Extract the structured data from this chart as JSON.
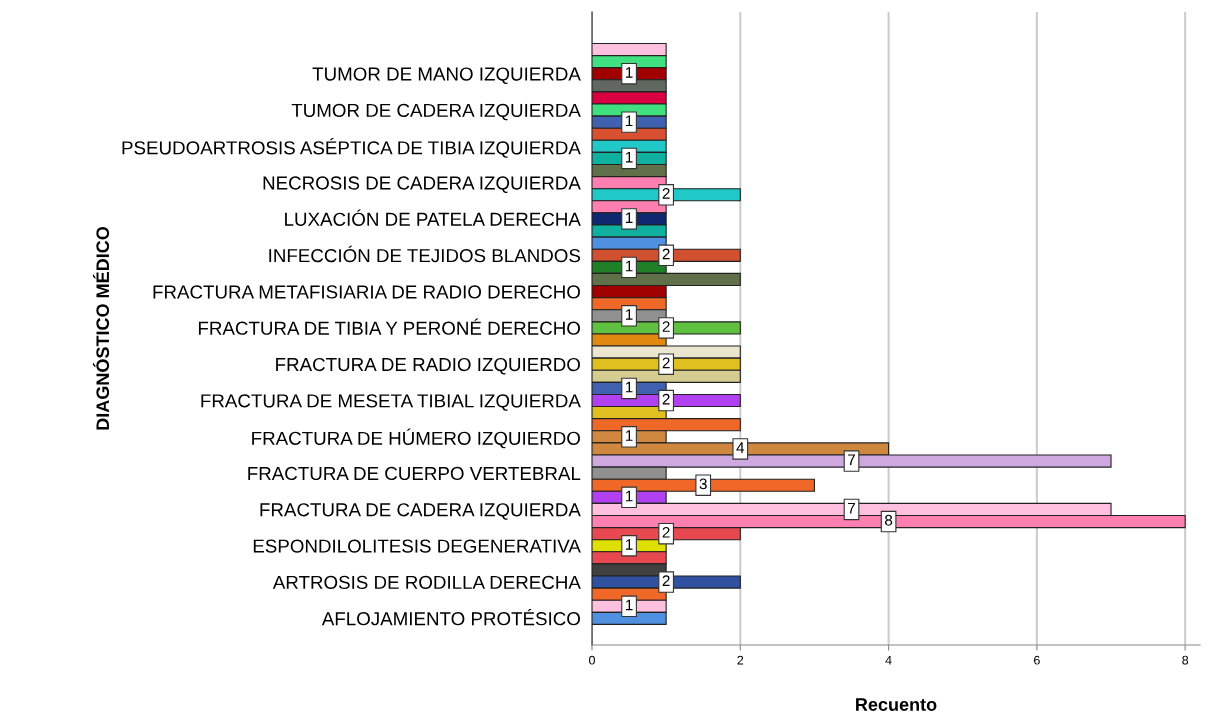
{
  "chart_data": {
    "type": "bar",
    "orientation": "horizontal",
    "xlabel": "Recuento",
    "ylabel": "DIAGNÓSTICO MÉDICO",
    "categories": [
      null,
      null,
      "TUMOR DE MANO IZQUIERDA",
      null,
      null,
      "TUMOR DE CADERA IZQUIERDA",
      null,
      null,
      "PSEUDOARTROSIS ASÉPTICA DE TIBIA IZQUIERDA",
      null,
      null,
      "NECROSIS DE CADERA IZQUIERDA",
      null,
      null,
      "LUXACIÓN DE PATELA DERECHA",
      null,
      null,
      "INFECCIÓN DE TEJIDOS BLANDOS",
      null,
      null,
      "FRACTURA METAFISIARIA DE RADIO DERECHO",
      null,
      null,
      "FRACTURA DE TIBIA Y PERONÉ DERECHO",
      null,
      null,
      "FRACTURA DE RADIO IZQUIERDO",
      null,
      null,
      "FRACTURA DE MESETA TIBIAL IZQUIERDA",
      null,
      null,
      "FRACTURA DE HÚMERO IZQUIERDO",
      null,
      null,
      "FRACTURA DE CUERPO VERTEBRAL",
      null,
      null,
      "FRACTURA DE CADERA IZQUIERDA",
      null,
      null,
      "ESPONDILOLITESIS DEGENERATIVA",
      null,
      null,
      "ARTROSIS DE RODILLA DERECHA",
      null,
      null,
      "AFLOJAMIENTO PROTÉSICO"
    ],
    "values": [
      1,
      1,
      1,
      1,
      1,
      1,
      1,
      1,
      1,
      1,
      1,
      1,
      2,
      1,
      1,
      1,
      1,
      2,
      1,
      2,
      1,
      1,
      1,
      2,
      1,
      2,
      2,
      2,
      1,
      2,
      1,
      2,
      1,
      4,
      7,
      1,
      3,
      1,
      7,
      8,
      2,
      1,
      1,
      1,
      2,
      1,
      1,
      1
    ],
    "colors": [
      "#ffc0e0",
      "#40e080",
      "#a00000",
      "#606860",
      "#d80040",
      "#40e080",
      "#4060b0",
      "#d85030",
      "#20c8c8",
      "#10b0a0",
      "#607048",
      "#ff80b0",
      "#20c8c8",
      "#ff80b0",
      "#102870",
      "#10b0a0",
      "#5090e0",
      "#d05030",
      "#208028",
      "#607048",
      "#a00000",
      "#f06828",
      "#909090",
      "#60c040",
      "#e08810",
      "#ebe6d0",
      "#e0c020",
      "#d4cc90",
      "#4060b0",
      "#b040f0",
      "#e0c020",
      "#f06828",
      "#d08840",
      "#d08840",
      "#d0a8e0",
      "#909090",
      "#f06828",
      "#b040f0",
      "#ffc0e0",
      "#ff80b0",
      "#e84850",
      "#e0e000",
      "#e84850",
      "#404040",
      "#3050a0",
      "#f06828",
      "#ffc0e0",
      "#5090e0"
    ],
    "value_labels": [
      null,
      null,
      "1",
      null,
      null,
      null,
      "1",
      null,
      null,
      "1",
      null,
      null,
      "2",
      null,
      "1",
      null,
      null,
      "2",
      "1",
      null,
      null,
      null,
      "1",
      "2",
      null,
      null,
      "2",
      null,
      "1",
      "2",
      null,
      null,
      "1",
      "4",
      "7",
      null,
      "3",
      "1",
      "7",
      "8",
      "2",
      "1",
      null,
      null,
      "2",
      null,
      "1",
      null
    ],
    "xlim": [
      0,
      8.2
    ],
    "xticks": [
      0,
      2,
      4,
      6,
      8
    ],
    "grid": "x"
  }
}
